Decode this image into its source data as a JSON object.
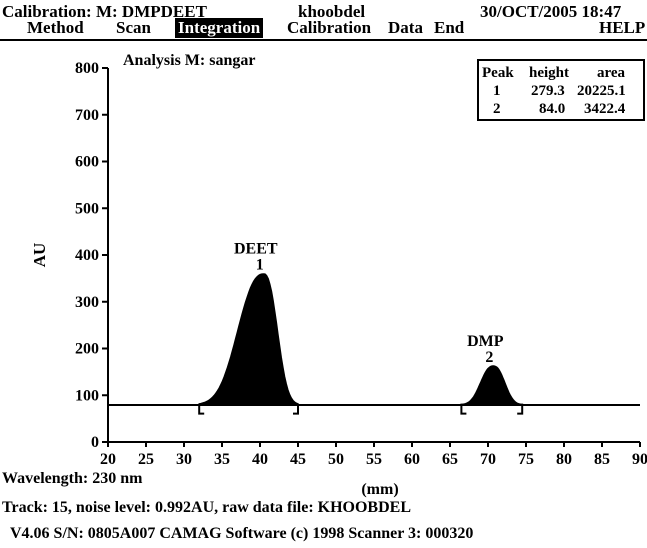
{
  "header": {
    "calibration": "Calibration: M: DMPDEET",
    "user": "khoobdel",
    "datetime": "30/OCT/2005 18:47"
  },
  "menu": {
    "items": [
      "Method",
      "Scan",
      "Integration",
      "Calibration",
      "Data",
      "End"
    ],
    "active": "Integration",
    "help": "HELP"
  },
  "analysis_label": "Analysis M: sangar",
  "peak_table": {
    "headers": [
      "Peak",
      "height",
      "area"
    ],
    "rows": [
      {
        "peak": "1",
        "height": "279.3",
        "area": "20225.1"
      },
      {
        "peak": "2",
        "height": "84.0",
        "area": "3422.4"
      }
    ]
  },
  "chart_data": {
    "type": "line",
    "xlabel": "(mm)",
    "ylabel": "AU",
    "xlim": [
      20,
      90
    ],
    "ylim": [
      0,
      800
    ],
    "xticks": [
      20,
      25,
      30,
      35,
      40,
      45,
      50,
      55,
      60,
      65,
      70,
      75,
      80,
      85,
      90
    ],
    "yticks": [
      0,
      100,
      200,
      300,
      400,
      500,
      600,
      700,
      800
    ],
    "baseline": 80,
    "fill_color": "#000000",
    "peaks": [
      {
        "number": "1",
        "name": "DEET",
        "start": 32,
        "apex": 40.5,
        "end": 45,
        "max": 360
      },
      {
        "number": "2",
        "name": "DMP",
        "start": 66.5,
        "apex": 70.7,
        "end": 74.5,
        "max": 163
      }
    ]
  },
  "footer": {
    "wavelength": "Wavelength: 230 nm",
    "track": "Track: 15, noise level:   0.992AU, raw data file: KHOOBDEL",
    "version": "V4.06 S/N: 0805A007  CAMAG Software (c) 1998   Scanner 3: 000320"
  }
}
